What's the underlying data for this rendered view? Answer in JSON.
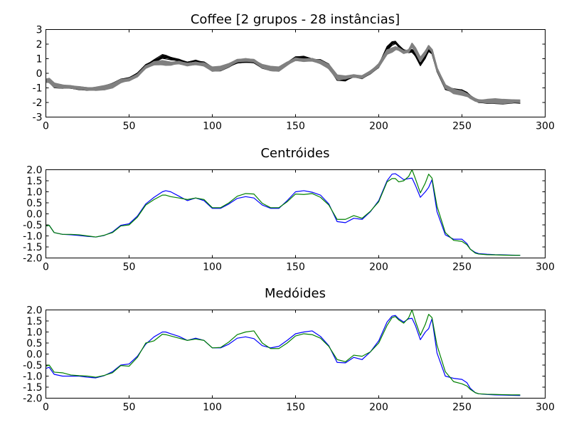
{
  "chart_data": [
    {
      "type": "line",
      "title": "Coffee [2 grupos - 28 instâncias]",
      "xlabel": "",
      "ylabel": "",
      "xlim": [
        0,
        300
      ],
      "ylim": [
        -3,
        3
      ],
      "xticks": [
        0,
        50,
        100,
        150,
        200,
        250,
        300
      ],
      "yticks": [
        -3,
        -2,
        -1,
        0,
        1,
        2,
        3
      ],
      "grid": false,
      "legend": "none",
      "series_count": 28,
      "groups": [
        {
          "color": "#000000",
          "instances": 14
        },
        {
          "color": "#808080",
          "instances": 14
        }
      ],
      "series": [
        {
          "color": "#000000",
          "x": [
            0,
            2,
            5,
            10,
            15,
            20,
            25,
            30,
            35,
            40,
            45,
            50,
            55,
            60,
            65,
            70,
            72,
            75,
            80,
            85,
            90,
            95,
            100,
            105,
            110,
            115,
            120,
            125,
            130,
            135,
            140,
            145,
            150,
            155,
            160,
            165,
            170,
            175,
            180,
            185,
            190,
            195,
            200,
            205,
            208,
            210,
            212,
            215,
            218,
            220,
            222,
            225,
            228,
            230,
            232,
            235,
            240,
            245,
            250,
            253,
            255,
            258,
            260,
            265,
            270,
            275,
            280,
            285
          ],
          "y": [
            -0.5,
            -0.5,
            -0.85,
            -0.95,
            -0.98,
            -1.05,
            -1.08,
            -1.06,
            -1.0,
            -0.8,
            -0.5,
            -0.38,
            -0.05,
            0.55,
            0.85,
            1.15,
            1.12,
            1.0,
            0.88,
            0.7,
            0.85,
            0.7,
            0.28,
            0.3,
            0.5,
            0.75,
            0.82,
            0.8,
            0.45,
            0.3,
            0.28,
            0.65,
            1.05,
            1.1,
            0.95,
            0.85,
            0.5,
            -0.35,
            -0.45,
            -0.2,
            -0.3,
            0.05,
            0.5,
            1.7,
            2.05,
            2.1,
            1.85,
            1.55,
            1.5,
            1.55,
            1.3,
            0.65,
            1.1,
            1.55,
            1.4,
            0.2,
            -1.0,
            -1.2,
            -1.25,
            -1.4,
            -1.6,
            -1.8,
            -1.92,
            -1.95,
            -1.95,
            -1.97,
            -1.98,
            -2.0
          ]
        },
        {
          "color": "#808080",
          "x": [
            0,
            2,
            5,
            10,
            15,
            20,
            25,
            30,
            35,
            40,
            45,
            50,
            55,
            60,
            65,
            70,
            72,
            75,
            80,
            85,
            90,
            95,
            100,
            105,
            110,
            115,
            120,
            125,
            130,
            135,
            140,
            145,
            150,
            155,
            160,
            165,
            170,
            175,
            180,
            185,
            190,
            195,
            200,
            205,
            208,
            210,
            212,
            215,
            218,
            220,
            222,
            225,
            228,
            230,
            232,
            235,
            240,
            245,
            250,
            253,
            255,
            258,
            260,
            265,
            270,
            275,
            280,
            285
          ],
          "y": [
            -0.5,
            -0.5,
            -0.8,
            -0.92,
            -0.95,
            -1.0,
            -1.05,
            -1.05,
            -1.0,
            -0.85,
            -0.55,
            -0.45,
            -0.15,
            0.45,
            0.7,
            0.72,
            0.7,
            0.65,
            0.72,
            0.6,
            0.7,
            0.62,
            0.28,
            0.35,
            0.55,
            0.85,
            0.92,
            0.88,
            0.5,
            0.32,
            0.3,
            0.65,
            0.95,
            0.9,
            0.95,
            0.78,
            0.45,
            -0.25,
            -0.3,
            -0.2,
            -0.25,
            0.1,
            0.55,
            1.45,
            1.6,
            1.7,
            1.65,
            1.45,
            1.55,
            1.95,
            1.6,
            0.95,
            1.4,
            1.8,
            1.55,
            0.3,
            -0.9,
            -1.25,
            -1.35,
            -1.5,
            -1.65,
            -1.82,
            -1.88,
            -1.9,
            -1.9,
            -1.92,
            -1.93,
            -1.93
          ]
        }
      ]
    },
    {
      "type": "line",
      "title": "Centróides",
      "xlabel": "",
      "ylabel": "",
      "xlim": [
        0,
        300
      ],
      "ylim": [
        -2.0,
        2.0
      ],
      "xticks": [
        0,
        50,
        100,
        150,
        200,
        250,
        300
      ],
      "yticks": [
        -2.0,
        -1.5,
        -1.0,
        -0.5,
        0.0,
        0.5,
        1.0,
        1.5,
        2.0
      ],
      "grid": false,
      "legend": "none",
      "series": [
        {
          "color": "#0000ff",
          "x": [
            0,
            2,
            5,
            10,
            15,
            20,
            25,
            30,
            35,
            40,
            45,
            50,
            55,
            60,
            65,
            70,
            72,
            75,
            80,
            85,
            90,
            95,
            100,
            105,
            110,
            115,
            120,
            125,
            130,
            135,
            140,
            145,
            150,
            155,
            160,
            165,
            170,
            175,
            180,
            185,
            190,
            195,
            200,
            205,
            208,
            210,
            212,
            215,
            218,
            220,
            222,
            225,
            228,
            230,
            232,
            235,
            240,
            245,
            250,
            253,
            255,
            258,
            260,
            265,
            270,
            275,
            280,
            285
          ],
          "y": [
            -0.55,
            -0.52,
            -0.85,
            -0.93,
            -0.95,
            -0.98,
            -1.02,
            -1.05,
            -0.98,
            -0.82,
            -0.52,
            -0.45,
            -0.1,
            0.45,
            0.75,
            1.0,
            1.05,
            1.0,
            0.8,
            0.6,
            0.72,
            0.6,
            0.25,
            0.25,
            0.45,
            0.7,
            0.78,
            0.72,
            0.4,
            0.25,
            0.25,
            0.6,
            1.0,
            1.05,
            0.98,
            0.85,
            0.45,
            -0.35,
            -0.4,
            -0.2,
            -0.25,
            0.1,
            0.6,
            1.5,
            1.8,
            1.82,
            1.72,
            1.55,
            1.6,
            1.62,
            1.3,
            0.75,
            1.0,
            1.2,
            1.55,
            0.1,
            -0.95,
            -1.15,
            -1.15,
            -1.35,
            -1.6,
            -1.75,
            -1.8,
            -1.83,
            -1.85,
            -1.86,
            -1.87,
            -1.88
          ]
        },
        {
          "color": "#008000",
          "x": [
            0,
            2,
            5,
            10,
            15,
            20,
            25,
            30,
            35,
            40,
            45,
            50,
            55,
            60,
            65,
            70,
            72,
            75,
            80,
            85,
            90,
            95,
            100,
            105,
            110,
            115,
            120,
            125,
            130,
            135,
            140,
            145,
            150,
            155,
            160,
            165,
            170,
            175,
            180,
            185,
            190,
            195,
            200,
            205,
            208,
            210,
            212,
            215,
            218,
            220,
            222,
            225,
            228,
            230,
            232,
            235,
            240,
            245,
            250,
            253,
            255,
            258,
            260,
            265,
            270,
            275,
            280,
            285
          ],
          "y": [
            -0.55,
            -0.52,
            -0.85,
            -0.93,
            -0.93,
            -0.95,
            -1.0,
            -1.05,
            -0.97,
            -0.85,
            -0.55,
            -0.5,
            -0.15,
            0.4,
            0.65,
            0.85,
            0.85,
            0.78,
            0.72,
            0.65,
            0.72,
            0.65,
            0.28,
            0.28,
            0.5,
            0.8,
            0.92,
            0.9,
            0.48,
            0.28,
            0.28,
            0.55,
            0.9,
            0.88,
            0.92,
            0.75,
            0.4,
            -0.25,
            -0.25,
            -0.08,
            -0.2,
            0.12,
            0.55,
            1.45,
            1.6,
            1.6,
            1.45,
            1.5,
            1.7,
            2.0,
            1.6,
            0.95,
            1.4,
            1.8,
            1.62,
            0.35,
            -0.85,
            -1.2,
            -1.25,
            -1.4,
            -1.6,
            -1.78,
            -1.82,
            -1.85,
            -1.86,
            -1.87,
            -1.88,
            -1.88
          ]
        }
      ]
    },
    {
      "type": "line",
      "title": "Medóides",
      "xlabel": "",
      "ylabel": "",
      "xlim": [
        0,
        300
      ],
      "ylim": [
        -2.0,
        2.0
      ],
      "xticks": [
        0,
        50,
        100,
        150,
        200,
        250,
        300
      ],
      "yticks": [
        -2.0,
        -1.5,
        -1.0,
        -0.5,
        0.0,
        0.5,
        1.0,
        1.5,
        2.0
      ],
      "grid": false,
      "legend": "none",
      "series": [
        {
          "color": "#0000ff",
          "x": [
            0,
            2,
            5,
            10,
            15,
            20,
            25,
            30,
            35,
            40,
            45,
            50,
            55,
            60,
            65,
            70,
            72,
            75,
            80,
            85,
            90,
            95,
            100,
            105,
            110,
            115,
            120,
            125,
            130,
            135,
            140,
            145,
            150,
            155,
            160,
            165,
            170,
            175,
            180,
            185,
            190,
            195,
            200,
            205,
            208,
            210,
            212,
            215,
            218,
            220,
            222,
            225,
            228,
            230,
            232,
            235,
            240,
            245,
            250,
            253,
            255,
            258,
            260,
            265,
            270,
            275,
            280,
            285
          ],
          "y": [
            -0.65,
            -0.6,
            -0.92,
            -1.0,
            -1.0,
            -1.0,
            -1.05,
            -1.08,
            -0.98,
            -0.8,
            -0.5,
            -0.45,
            -0.1,
            0.45,
            0.78,
            1.0,
            1.0,
            0.92,
            0.8,
            0.62,
            0.72,
            0.62,
            0.28,
            0.28,
            0.45,
            0.72,
            0.78,
            0.7,
            0.38,
            0.28,
            0.35,
            0.62,
            0.92,
            1.0,
            1.05,
            0.8,
            0.38,
            -0.38,
            -0.4,
            -0.15,
            -0.25,
            0.1,
            0.6,
            1.45,
            1.72,
            1.75,
            1.6,
            1.45,
            1.6,
            1.62,
            1.3,
            0.65,
            1.0,
            1.15,
            1.6,
            0.05,
            -1.0,
            -1.1,
            -1.15,
            -1.3,
            -1.55,
            -1.75,
            -1.8,
            -1.83,
            -1.85,
            -1.86,
            -1.87,
            -1.88
          ]
        },
        {
          "color": "#008000",
          "x": [
            0,
            2,
            5,
            10,
            15,
            20,
            25,
            30,
            35,
            40,
            45,
            50,
            55,
            60,
            65,
            70,
            72,
            75,
            80,
            85,
            90,
            95,
            100,
            105,
            110,
            115,
            120,
            125,
            130,
            135,
            140,
            145,
            150,
            155,
            160,
            165,
            170,
            175,
            180,
            185,
            190,
            195,
            200,
            205,
            208,
            210,
            212,
            215,
            218,
            220,
            222,
            225,
            228,
            230,
            232,
            235,
            240,
            245,
            250,
            253,
            255,
            258,
            260,
            265,
            270,
            275,
            280,
            285
          ],
          "y": [
            -0.55,
            -0.5,
            -0.82,
            -0.85,
            -0.95,
            -0.98,
            -1.0,
            -1.05,
            -0.97,
            -0.85,
            -0.52,
            -0.55,
            -0.15,
            0.5,
            0.6,
            0.9,
            0.88,
            0.82,
            0.72,
            0.62,
            0.68,
            0.62,
            0.28,
            0.3,
            0.55,
            0.88,
            1.0,
            1.05,
            0.5,
            0.25,
            0.25,
            0.5,
            0.82,
            0.92,
            0.88,
            0.72,
            0.35,
            -0.25,
            -0.35,
            -0.05,
            -0.1,
            0.1,
            0.5,
            1.3,
            1.65,
            1.7,
            1.55,
            1.4,
            1.65,
            2.0,
            1.5,
            0.85,
            1.35,
            1.8,
            1.65,
            0.4,
            -0.8,
            -1.25,
            -1.35,
            -1.45,
            -1.6,
            -1.75,
            -1.8,
            -1.82,
            -1.83,
            -1.84,
            -1.85,
            -1.85
          ]
        }
      ]
    }
  ]
}
